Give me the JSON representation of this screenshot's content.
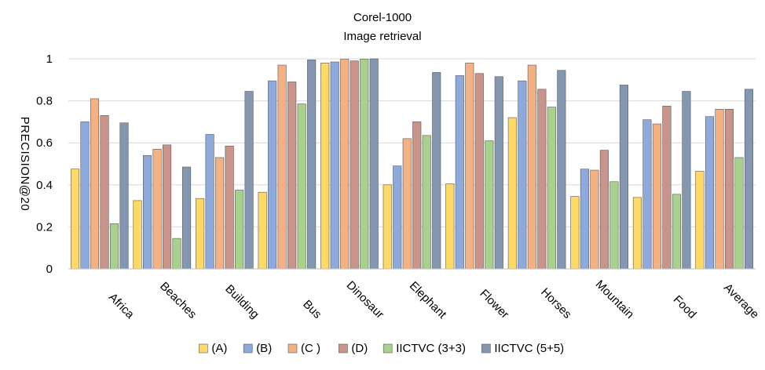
{
  "chart_data": {
    "type": "bar",
    "title": "Corel-1000",
    "subtitle": "Image retrieval",
    "xlabel": "",
    "ylabel": "PRECISION@20",
    "ylim": [
      0,
      1
    ],
    "yticks": [
      "0",
      "0.2",
      "0.4",
      "0.6",
      "0.8",
      "1"
    ],
    "grid": true,
    "legend_position": "bottom",
    "categories": [
      "Africa",
      "Beaches",
      "Building",
      "Bus",
      "Dinosaur",
      "Elephant",
      "Flower",
      "Horses",
      "Mountain",
      "Food",
      "Average"
    ],
    "series": [
      {
        "name": "(A)",
        "color": "#FFD966",
        "values": [
          0.475,
          0.325,
          0.335,
          0.365,
          0.98,
          0.4,
          0.405,
          0.72,
          0.345,
          0.34,
          0.465
        ]
      },
      {
        "name": "(B)",
        "color": "#8EA9DB",
        "values": [
          0.7,
          0.54,
          0.64,
          0.895,
          0.985,
          0.49,
          0.92,
          0.895,
          0.475,
          0.71,
          0.725
        ]
      },
      {
        "name": "(C )",
        "color": "#F4B183",
        "values": [
          0.81,
          0.57,
          0.53,
          0.97,
          0.998,
          0.62,
          0.98,
          0.97,
          0.47,
          0.69,
          0.76
        ]
      },
      {
        "name": "(D)",
        "color": "#C9958A",
        "values": [
          0.73,
          0.59,
          0.585,
          0.89,
          0.99,
          0.7,
          0.93,
          0.855,
          0.565,
          0.775,
          0.76
        ]
      },
      {
        "name": "IICTVC (3+3)",
        "color": "#A9D18E",
        "values": [
          0.215,
          0.145,
          0.375,
          0.785,
          0.998,
          0.635,
          0.61,
          0.77,
          0.415,
          0.355,
          0.53
        ]
      },
      {
        "name": "IICTVC (5+5)",
        "color": "#8497B0",
        "values": [
          0.695,
          0.485,
          0.845,
          0.995,
          1.0,
          0.935,
          0.915,
          0.945,
          0.875,
          0.845,
          0.855
        ]
      }
    ]
  }
}
